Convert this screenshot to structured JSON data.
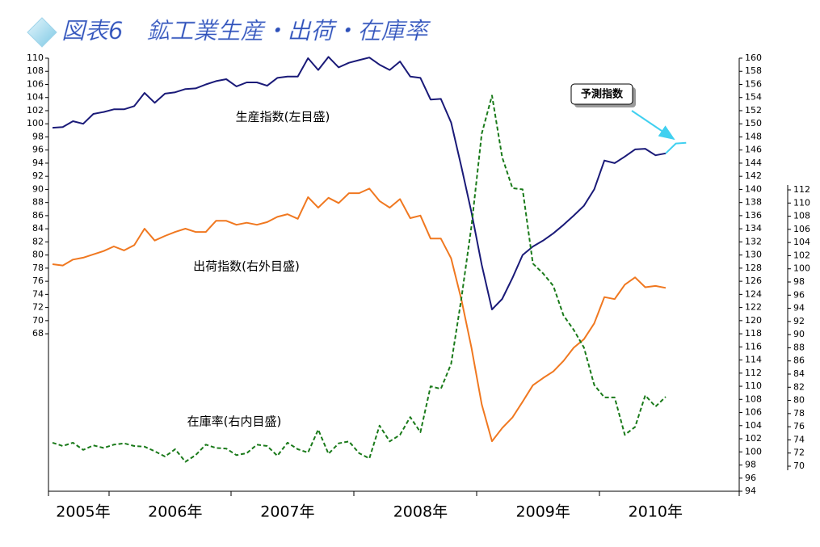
{
  "chart_data": {
    "type": "line",
    "title": "図表6　鉱工業生産・出荷・在庫率",
    "categories": [
      null,
      null,
      null,
      "2005年",
      null,
      null,
      null,
      null,
      null,
      null,
      null,
      null,
      "2006年",
      null,
      null,
      null,
      null,
      null,
      null,
      null,
      null,
      null,
      null,
      "2007年",
      null,
      null,
      null,
      null,
      null,
      null,
      null,
      null,
      null,
      null,
      null,
      null,
      "2008年",
      null,
      null,
      null,
      null,
      null,
      null,
      null,
      null,
      null,
      null,
      null,
      "2009年",
      null,
      null,
      null,
      null,
      null,
      null,
      null,
      null,
      null,
      null,
      "2010年",
      null,
      null,
      null,
      null,
      null,
      null,
      null,
      null
    ],
    "ylim": [
      44,
      110
    ],
    "yticks": [
      68,
      70,
      72,
      74,
      76,
      78,
      80,
      82,
      84,
      86,
      88,
      90,
      92,
      94,
      96,
      98,
      100,
      102,
      104,
      106,
      108,
      110
    ],
    "y2lim": [
      94,
      160
    ],
    "y2ticks": [
      94,
      96,
      98,
      100,
      102,
      104,
      106,
      108,
      110,
      112,
      114,
      116,
      118,
      120,
      122,
      124,
      126,
      128,
      130,
      132,
      134,
      136,
      138,
      140,
      142,
      144,
      146,
      148,
      150,
      152,
      154,
      156,
      158,
      160
    ],
    "y3lim": [
      70,
      112
    ],
    "y3ticks": [
      70,
      72,
      74,
      76,
      78,
      80,
      82,
      84,
      86,
      88,
      90,
      92,
      94,
      96,
      98,
      100,
      102,
      104,
      106,
      108,
      110,
      112
    ],
    "series": [
      {
        "name": "生産指数(左目盛)",
        "color": "#1a1a78",
        "axis": "y",
        "dashed": false,
        "values": [
          99.4,
          99.5,
          100.4,
          100,
          101.5,
          101.8,
          102.2,
          102.2,
          102.7,
          104.7,
          103.2,
          104.6,
          104.8,
          105.3,
          105.4,
          106,
          106.5,
          106.8,
          105.7,
          106.3,
          106.3,
          105.8,
          107,
          107.2,
          107.2,
          110,
          108.2,
          110.2,
          108.6,
          109.3,
          109.7,
          110.1,
          109,
          108.2,
          109.5,
          107.2,
          107,
          103.7,
          103.8,
          100.2,
          93.5,
          86.5,
          78.5,
          71.7,
          73.3,
          76.5,
          80,
          81.3,
          82.2,
          83.3,
          84.6,
          86,
          87.5,
          90,
          94.4,
          94,
          95,
          96.1,
          96.2,
          95.2,
          95.5,
          null,
          null,
          null,
          null,
          null,
          null,
          null
        ]
      },
      {
        "name": "出荷指数(右外目盛)",
        "color": "#f07820",
        "axis": "y3",
        "dashed": false,
        "values": [
          100.7,
          100.5,
          101.4,
          101.7,
          102.2,
          102.7,
          103.4,
          102.8,
          103.6,
          106.1,
          104.3,
          105,
          105.6,
          106.1,
          105.6,
          105.6,
          107.3,
          107.3,
          106.7,
          107,
          106.7,
          107.1,
          107.9,
          108.3,
          107.6,
          110.9,
          109.3,
          110.8,
          110,
          111.5,
          111.5,
          112.2,
          110.3,
          109.3,
          110.6,
          107.7,
          108.1,
          104.6,
          104.6,
          101.6,
          95.4,
          88,
          79.4,
          73.8,
          75.8,
          77.4,
          79.8,
          82.3,
          83.4,
          84.4,
          86,
          88,
          89.3,
          91.7,
          95.7,
          95.4,
          97.6,
          98.7,
          97.2,
          97.4,
          97.1,
          null,
          null,
          null,
          null,
          null,
          null,
          null
        ]
      },
      {
        "name": "在庫率(右内目盛)",
        "color": "#1a7a1a",
        "axis": "y2",
        "dashed": true,
        "values": [
          101.4,
          100.9,
          101.4,
          100.3,
          101,
          100.6,
          101.1,
          101.3,
          100.9,
          100.8,
          100.1,
          99.3,
          100.4,
          98.5,
          99.5,
          101.1,
          100.6,
          100.5,
          99.5,
          99.8,
          101.1,
          100.9,
          99.4,
          101.4,
          100.4,
          99.9,
          103.4,
          99.7,
          101.3,
          101.6,
          99.8,
          99,
          104,
          101.6,
          102.6,
          105.3,
          103,
          110,
          109.6,
          113.4,
          123.3,
          134.4,
          148.5,
          154.3,
          144.9,
          140.2,
          140,
          128.7,
          127.2,
          125.3,
          120.8,
          118.6,
          115.9,
          110.2,
          108.3,
          108.3,
          102.6,
          103.8,
          108.6,
          106.9,
          108.4,
          null,
          null,
          null,
          null,
          null,
          null,
          null
        ]
      },
      {
        "name": "予測指数",
        "color": "#40d0f0",
        "axis": "y",
        "dashed": false,
        "values": [
          null,
          null,
          null,
          null,
          null,
          null,
          null,
          null,
          null,
          null,
          null,
          null,
          null,
          null,
          null,
          null,
          null,
          null,
          null,
          null,
          null,
          null,
          null,
          null,
          null,
          null,
          null,
          null,
          null,
          null,
          null,
          null,
          null,
          null,
          null,
          null,
          null,
          null,
          null,
          null,
          null,
          null,
          null,
          null,
          null,
          null,
          null,
          null,
          null,
          null,
          null,
          null,
          null,
          null,
          null,
          null,
          null,
          null,
          null,
          null,
          95.5,
          97,
          97.1,
          null,
          null,
          null,
          null,
          null
        ]
      }
    ]
  }
}
